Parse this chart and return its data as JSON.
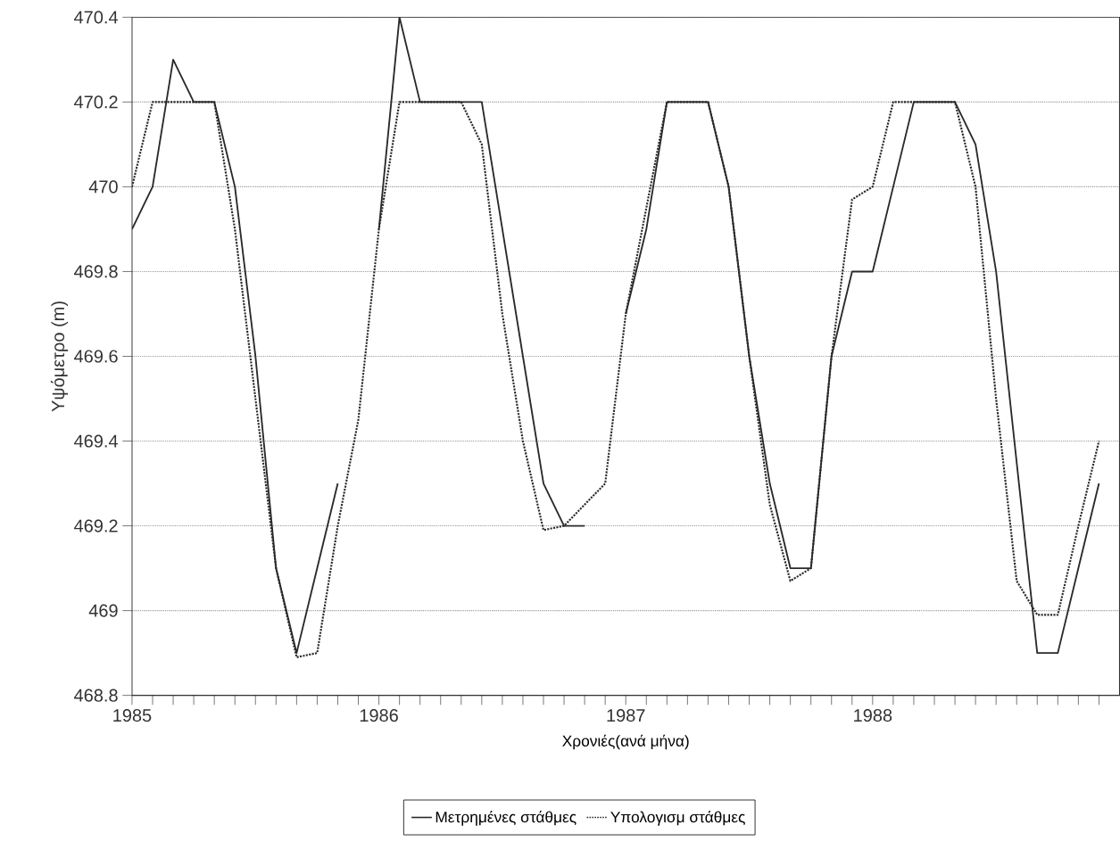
{
  "chart_data": {
    "type": "line",
    "xlabel": "Χρονιές(ανά μήνα)",
    "ylabel": "Υψόμετρο (m)",
    "x": [
      "1985-01",
      "1985-02",
      "1985-03",
      "1985-04",
      "1985-05",
      "1985-06",
      "1985-07",
      "1985-08",
      "1985-09",
      "1985-10",
      "1985-11",
      "1985-12",
      "1986-01",
      "1986-02",
      "1986-03",
      "1986-04",
      "1986-05",
      "1986-06",
      "1986-07",
      "1986-08",
      "1986-09",
      "1986-10",
      "1986-11",
      "1986-12",
      "1987-01",
      "1987-02",
      "1987-03",
      "1987-04",
      "1987-05",
      "1987-06",
      "1987-07",
      "1987-08",
      "1987-09",
      "1987-10",
      "1987-11",
      "1987-12",
      "1988-01",
      "1988-02",
      "1988-03",
      "1988-04",
      "1988-05",
      "1988-06",
      "1988-07",
      "1988-08",
      "1988-09",
      "1988-10",
      "1988-11",
      "1988-12"
    ],
    "series": [
      {
        "name": "Μετρημένες στάθμες",
        "color": "#2a2a2a",
        "line_style": "solid",
        "values": [
          469.9,
          470.0,
          470.3,
          470.2,
          470.2,
          470.0,
          469.6,
          469.1,
          468.9,
          469.1,
          469.3,
          null,
          469.9,
          470.4,
          470.2,
          470.2,
          470.2,
          470.2,
          469.9,
          469.6,
          469.3,
          469.2,
          469.2,
          null,
          469.7,
          469.9,
          470.2,
          470.2,
          470.2,
          470.0,
          469.6,
          469.3,
          469.1,
          469.1,
          469.6,
          469.8,
          469.8,
          470.0,
          470.2,
          470.2,
          470.2,
          470.1,
          469.8,
          469.35,
          468.9,
          468.9,
          469.1,
          469.3
        ]
      },
      {
        "name": "Υπολογισμ στάθμες",
        "color": "#2a2a2a",
        "line_style": "dotted",
        "values": [
          470.0,
          470.2,
          470.2,
          470.2,
          470.2,
          469.9,
          469.5,
          469.1,
          468.89,
          468.9,
          469.2,
          469.45,
          469.9,
          470.2,
          470.2,
          470.2,
          470.2,
          470.1,
          469.7,
          469.4,
          469.19,
          469.2,
          469.25,
          469.3,
          469.7,
          469.95,
          470.2,
          470.2,
          470.2,
          470.0,
          469.6,
          469.25,
          469.07,
          469.1,
          469.6,
          469.97,
          470.0,
          470.2,
          470.2,
          470.2,
          470.2,
          470.0,
          469.5,
          469.07,
          468.99,
          468.99,
          469.2,
          469.4
        ]
      }
    ],
    "xlim": [
      "1985-01",
      "1989-01"
    ],
    "xticks": [
      {
        "value": "1985-01",
        "label": "1985"
      },
      {
        "value": "1985-02",
        "label": null
      },
      {
        "value": "1985-03",
        "label": null
      },
      {
        "value": "1985-04",
        "label": null
      },
      {
        "value": "1985-05",
        "label": null
      },
      {
        "value": "1985-06",
        "label": null
      },
      {
        "value": "1985-07",
        "label": null
      },
      {
        "value": "1985-08",
        "label": null
      },
      {
        "value": "1985-09",
        "label": null
      },
      {
        "value": "1985-10",
        "label": null
      },
      {
        "value": "1985-11",
        "label": null
      },
      {
        "value": "1985-12",
        "label": null
      },
      {
        "value": "1986-01",
        "label": "1986"
      },
      {
        "value": "1986-02",
        "label": null
      },
      {
        "value": "1986-03",
        "label": null
      },
      {
        "value": "1986-04",
        "label": null
      },
      {
        "value": "1986-05",
        "label": null
      },
      {
        "value": "1986-06",
        "label": null
      },
      {
        "value": "1986-07",
        "label": null
      },
      {
        "value": "1986-08",
        "label": null
      },
      {
        "value": "1986-09",
        "label": null
      },
      {
        "value": "1986-10",
        "label": null
      },
      {
        "value": "1986-11",
        "label": null
      },
      {
        "value": "1986-12",
        "label": null
      },
      {
        "value": "1987-01",
        "label": "1987"
      },
      {
        "value": "1987-02",
        "label": null
      },
      {
        "value": "1987-03",
        "label": null
      },
      {
        "value": "1987-04",
        "label": null
      },
      {
        "value": "1987-05",
        "label": null
      },
      {
        "value": "1987-06",
        "label": null
      },
      {
        "value": "1987-07",
        "label": null
      },
      {
        "value": "1987-08",
        "label": null
      },
      {
        "value": "1987-09",
        "label": null
      },
      {
        "value": "1987-10",
        "label": null
      },
      {
        "value": "1987-11",
        "label": null
      },
      {
        "value": "1987-12",
        "label": null
      },
      {
        "value": "1988-01",
        "label": "1988"
      },
      {
        "value": "1988-02",
        "label": null
      },
      {
        "value": "1988-03",
        "label": null
      },
      {
        "value": "1988-04",
        "label": null
      },
      {
        "value": "1988-05",
        "label": null
      },
      {
        "value": "1988-06",
        "label": null
      },
      {
        "value": "1988-07",
        "label": null
      },
      {
        "value": "1988-08",
        "label": null
      },
      {
        "value": "1988-09",
        "label": null
      },
      {
        "value": "1988-10",
        "label": null
      },
      {
        "value": "1988-11",
        "label": null
      },
      {
        "value": "1988-12",
        "label": null
      }
    ],
    "ylim": [
      468.8,
      470.4
    ],
    "yticks": [
      {
        "value": 468.8,
        "label": "468.8"
      },
      {
        "value": 469,
        "label": "469"
      },
      {
        "value": 469.2,
        "label": "469.2"
      },
      {
        "value": 469.4,
        "label": "469.4"
      },
      {
        "value": 469.6,
        "label": "469.6"
      },
      {
        "value": 469.8,
        "label": "469.8"
      },
      {
        "value": 470,
        "label": "470"
      },
      {
        "value": 470.2,
        "label": "470.2"
      },
      {
        "value": 470.4,
        "label": "470.4"
      }
    ],
    "grid": "y",
    "legend": "bottom",
    "marker": "none"
  }
}
